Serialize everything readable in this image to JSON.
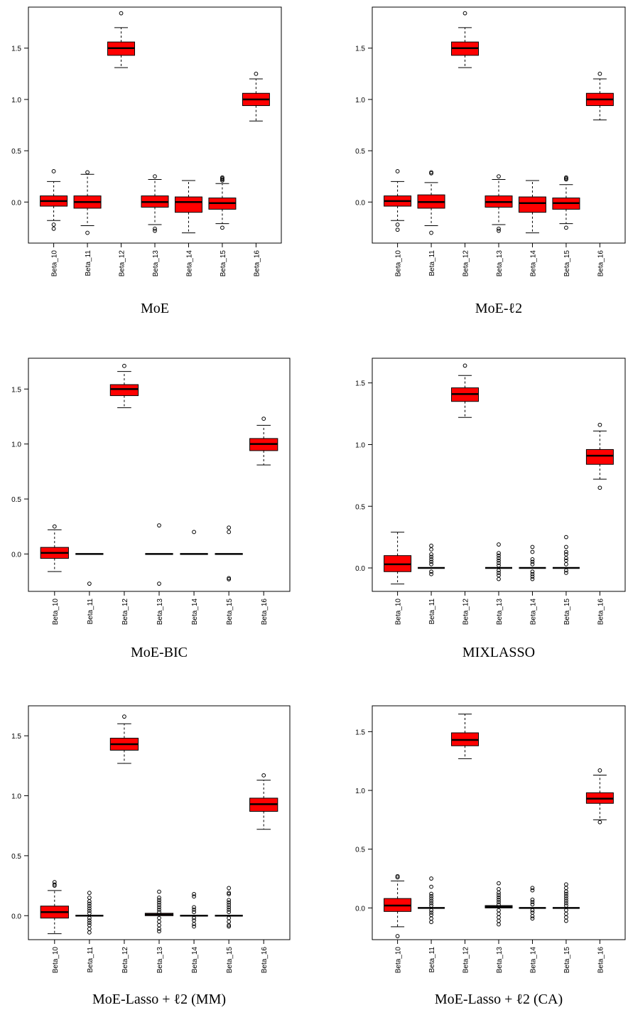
{
  "figure": {
    "box_fill": "#ff0000",
    "box_stroke": "#000000"
  },
  "chart_data": [
    {
      "type": "boxplot",
      "caption": "MoE",
      "categories": [
        "Beta_10",
        "Beta_11",
        "Beta_12",
        "Beta_13",
        "Beta_14",
        "Beta_15",
        "Beta_16"
      ],
      "yticks": [
        "0.0",
        "0.5",
        "1.0",
        "1.5"
      ],
      "ylim": [
        -0.4,
        1.9
      ],
      "boxes": [
        {
          "q1": -0.04,
          "median": 0.01,
          "q3": 0.06,
          "wlo": -0.18,
          "whi": 0.2,
          "outliers": [
            0.3,
            -0.22,
            -0.26
          ]
        },
        {
          "q1": -0.06,
          "median": 0.0,
          "q3": 0.06,
          "wlo": -0.23,
          "whi": 0.27,
          "outliers": [
            0.29,
            -0.3
          ]
        },
        {
          "q1": 1.43,
          "median": 1.5,
          "q3": 1.56,
          "wlo": 1.31,
          "whi": 1.7,
          "outliers": [
            1.84
          ]
        },
        {
          "q1": -0.05,
          "median": 0.0,
          "q3": 0.06,
          "wlo": -0.22,
          "whi": 0.22,
          "outliers": [
            0.25,
            -0.26,
            -0.28
          ]
        },
        {
          "q1": -0.1,
          "median": 0.0,
          "q3": 0.05,
          "wlo": -0.3,
          "whi": 0.21,
          "outliers": []
        },
        {
          "q1": -0.07,
          "median": -0.01,
          "q3": 0.04,
          "wlo": -0.21,
          "whi": 0.18,
          "outliers": [
            0.23,
            0.22,
            0.24,
            0.21,
            -0.25
          ]
        },
        {
          "q1": 0.94,
          "median": 1.0,
          "q3": 1.06,
          "wlo": 0.79,
          "whi": 1.2,
          "outliers": [
            1.25
          ]
        }
      ]
    },
    {
      "type": "boxplot",
      "caption": "MoE-ℓ2",
      "categories": [
        "Beta_10",
        "Beta_11",
        "Beta_12",
        "Beta_13",
        "Beta_14",
        "Beta_15",
        "Beta_16"
      ],
      "yticks": [
        "0.0",
        "0.5",
        "1.0",
        "1.5"
      ],
      "ylim": [
        -0.4,
        1.9
      ],
      "boxes": [
        {
          "q1": -0.04,
          "median": 0.01,
          "q3": 0.06,
          "wlo": -0.18,
          "whi": 0.2,
          "outliers": [
            0.3,
            -0.22,
            -0.27
          ]
        },
        {
          "q1": -0.06,
          "median": 0.0,
          "q3": 0.07,
          "wlo": -0.23,
          "whi": 0.19,
          "outliers": [
            0.28,
            0.29,
            -0.3
          ]
        },
        {
          "q1": 1.43,
          "median": 1.5,
          "q3": 1.56,
          "wlo": 1.31,
          "whi": 1.7,
          "outliers": [
            1.84
          ]
        },
        {
          "q1": -0.05,
          "median": 0.0,
          "q3": 0.06,
          "wlo": -0.22,
          "whi": 0.22,
          "outliers": [
            0.25,
            -0.26,
            -0.28
          ]
        },
        {
          "q1": -0.1,
          "median": -0.01,
          "q3": 0.05,
          "wlo": -0.3,
          "whi": 0.21,
          "outliers": []
        },
        {
          "q1": -0.07,
          "median": -0.01,
          "q3": 0.04,
          "wlo": -0.21,
          "whi": 0.17,
          "outliers": [
            0.22,
            0.23,
            0.24,
            -0.25
          ]
        },
        {
          "q1": 0.94,
          "median": 1.0,
          "q3": 1.06,
          "wlo": 0.8,
          "whi": 1.2,
          "outliers": [
            1.25
          ]
        }
      ]
    },
    {
      "type": "boxplot",
      "caption": "MoE-BIC",
      "categories": [
        "Beta_10",
        "Beta_11",
        "Beta_12",
        "Beta_13",
        "Beta_14",
        "Beta_15",
        "Beta_16"
      ],
      "yticks": [
        "0.0",
        "0.5",
        "1.0",
        "1.5"
      ],
      "ylim": [
        -0.34,
        1.78
      ],
      "boxes": [
        {
          "q1": -0.04,
          "median": 0.01,
          "q3": 0.06,
          "wlo": -0.16,
          "whi": 0.22,
          "outliers": [
            0.25
          ]
        },
        {
          "q1": 0.0,
          "median": 0.0,
          "q3": 0.0,
          "wlo": 0.0,
          "whi": 0.0,
          "outliers": [
            -0.27
          ]
        },
        {
          "q1": 1.44,
          "median": 1.5,
          "q3": 1.54,
          "wlo": 1.33,
          "whi": 1.66,
          "outliers": [
            1.71
          ]
        },
        {
          "q1": 0.0,
          "median": 0.0,
          "q3": 0.0,
          "wlo": 0.0,
          "whi": 0.0,
          "outliers": [
            0.26,
            -0.27
          ]
        },
        {
          "q1": 0.0,
          "median": 0.0,
          "q3": 0.0,
          "wlo": 0.0,
          "whi": 0.0,
          "outliers": [
            0.2
          ]
        },
        {
          "q1": 0.0,
          "median": 0.0,
          "q3": 0.0,
          "wlo": 0.0,
          "whi": 0.0,
          "outliers": [
            0.24,
            0.2,
            -0.22,
            -0.23
          ]
        },
        {
          "q1": 0.94,
          "median": 1.0,
          "q3": 1.05,
          "wlo": 0.81,
          "whi": 1.17,
          "outliers": [
            1.23
          ]
        }
      ]
    },
    {
      "type": "boxplot",
      "caption": "MIXLASSO",
      "categories": [
        "Beta_10",
        "Beta_11",
        "Beta_12",
        "Beta_13",
        "Beta_14",
        "Beta_15",
        "Beta_16"
      ],
      "yticks": [
        "0.0",
        "0.5",
        "1.0",
        "1.5"
      ],
      "ylim": [
        -0.19,
        1.7
      ],
      "boxes": [
        {
          "q1": -0.03,
          "median": 0.03,
          "q3": 0.1,
          "wlo": -0.13,
          "whi": 0.29,
          "outliers": []
        },
        {
          "q1": 0.0,
          "median": 0.0,
          "q3": 0.0,
          "wlo": 0.0,
          "whi": 0.0,
          "outliers": [
            0.18,
            0.15,
            0.11,
            0.09,
            0.07,
            0.05,
            0.03,
            -0.03,
            -0.05
          ]
        },
        {
          "q1": 1.35,
          "median": 1.41,
          "q3": 1.46,
          "wlo": 1.22,
          "whi": 1.56,
          "outliers": [
            1.64
          ]
        },
        {
          "q1": 0.0,
          "median": 0.0,
          "q3": 0.0,
          "wlo": 0.0,
          "whi": 0.0,
          "outliers": [
            0.19,
            0.12,
            0.1,
            0.08,
            0.06,
            0.04,
            0.02,
            -0.02,
            -0.04,
            -0.06,
            -0.09
          ]
        },
        {
          "q1": 0.0,
          "median": 0.0,
          "q3": 0.0,
          "wlo": 0.0,
          "whi": 0.0,
          "outliers": [
            0.17,
            0.13,
            0.07,
            0.05,
            0.03,
            -0.03,
            -0.05,
            -0.07,
            -0.09
          ]
        },
        {
          "q1": 0.0,
          "median": 0.0,
          "q3": 0.0,
          "wlo": 0.0,
          "whi": 0.0,
          "outliers": [
            0.25,
            0.17,
            0.13,
            0.11,
            0.08,
            0.06,
            0.03,
            -0.02,
            -0.04
          ]
        },
        {
          "q1": 0.84,
          "median": 0.91,
          "q3": 0.96,
          "wlo": 0.72,
          "whi": 1.11,
          "outliers": [
            1.16,
            0.65
          ]
        }
      ]
    },
    {
      "type": "boxplot",
      "caption": "MoE-Lasso + ℓ2 (MM)",
      "categories": [
        "Beta_10",
        "Beta_11",
        "Beta_12",
        "Beta_13",
        "Beta_14",
        "Beta_15",
        "Beta_16"
      ],
      "yticks": [
        "0.0",
        "0.5",
        "1.0",
        "1.5"
      ],
      "ylim": [
        -0.2,
        1.75
      ],
      "boxes": [
        {
          "q1": -0.02,
          "median": 0.03,
          "q3": 0.08,
          "wlo": -0.15,
          "whi": 0.21,
          "outliers": [
            0.28,
            0.26,
            0.25
          ]
        },
        {
          "q1": 0.0,
          "median": 0.0,
          "q3": 0.0,
          "wlo": 0.0,
          "whi": 0.0,
          "outliers": [
            0.19,
            0.15,
            0.12,
            0.1,
            0.08,
            0.06,
            0.04,
            0.02,
            -0.02,
            -0.04,
            -0.06,
            -0.08,
            -0.11,
            -0.14
          ]
        },
        {
          "q1": 1.38,
          "median": 1.43,
          "q3": 1.48,
          "wlo": 1.27,
          "whi": 1.6,
          "outliers": [
            1.66
          ]
        },
        {
          "q1": 0.0,
          "median": 0.01,
          "q3": 0.02,
          "wlo": 0.0,
          "whi": 0.02,
          "outliers": [
            0.2,
            0.15,
            0.13,
            0.11,
            0.09,
            0.07,
            0.05,
            0.03,
            -0.02,
            -0.05,
            -0.08,
            -0.11,
            -0.13
          ]
        },
        {
          "q1": 0.0,
          "median": 0.0,
          "q3": 0.0,
          "wlo": 0.0,
          "whi": 0.0,
          "outliers": [
            0.18,
            0.16,
            0.07,
            0.05,
            0.03,
            -0.02,
            -0.04,
            -0.07,
            -0.09
          ]
        },
        {
          "q1": 0.0,
          "median": 0.0,
          "q3": 0.0,
          "wlo": 0.0,
          "whi": 0.0,
          "outliers": [
            0.23,
            0.19,
            0.18,
            0.13,
            0.11,
            0.09,
            0.07,
            0.05,
            0.03,
            -0.02,
            -0.05,
            -0.08,
            -0.09
          ]
        },
        {
          "q1": 0.87,
          "median": 0.93,
          "q3": 0.98,
          "wlo": 0.72,
          "whi": 1.13,
          "outliers": [
            1.17
          ]
        }
      ]
    },
    {
      "type": "boxplot",
      "caption": "MoE-Lasso + ℓ2 (CA)",
      "categories": [
        "Beta_10",
        "Beta_11",
        "Beta_12",
        "Beta_13",
        "Beta_14",
        "Beta_15",
        "Beta_16"
      ],
      "yticks": [
        "0.0",
        "0.5",
        "1.0",
        "1.5"
      ],
      "ylim": [
        -0.27,
        1.72
      ],
      "boxes": [
        {
          "q1": -0.03,
          "median": 0.02,
          "q3": 0.08,
          "wlo": -0.16,
          "whi": 0.23,
          "outliers": [
            0.27,
            0.26,
            -0.24
          ]
        },
        {
          "q1": 0.0,
          "median": 0.0,
          "q3": 0.0,
          "wlo": 0.0,
          "whi": 0.0,
          "outliers": [
            0.25,
            0.18,
            0.12,
            0.1,
            0.08,
            0.06,
            0.04,
            0.02,
            -0.02,
            -0.04,
            -0.06,
            -0.09,
            -0.12
          ]
        },
        {
          "q1": 1.38,
          "median": 1.43,
          "q3": 1.49,
          "wlo": 1.27,
          "whi": 1.65,
          "outliers": []
        },
        {
          "q1": 0.0,
          "median": 0.01,
          "q3": 0.02,
          "wlo": 0.0,
          "whi": 0.02,
          "outliers": [
            0.21,
            0.16,
            0.13,
            0.11,
            0.09,
            0.07,
            0.05,
            0.03,
            -0.02,
            -0.05,
            -0.08,
            -0.11,
            -0.14
          ]
        },
        {
          "q1": 0.0,
          "median": 0.0,
          "q3": 0.0,
          "wlo": 0.0,
          "whi": 0.0,
          "outliers": [
            0.17,
            0.15,
            0.07,
            0.05,
            0.03,
            -0.02,
            -0.04,
            -0.07,
            -0.09
          ]
        },
        {
          "q1": 0.0,
          "median": 0.0,
          "q3": 0.0,
          "wlo": 0.0,
          "whi": 0.0,
          "outliers": [
            0.2,
            0.17,
            0.14,
            0.12,
            0.1,
            0.08,
            0.06,
            0.04,
            0.02,
            -0.02,
            -0.05,
            -0.08,
            -0.11
          ]
        },
        {
          "q1": 0.89,
          "median": 0.93,
          "q3": 0.98,
          "wlo": 0.75,
          "whi": 1.13,
          "outliers": [
            1.17,
            0.73
          ]
        }
      ]
    }
  ]
}
